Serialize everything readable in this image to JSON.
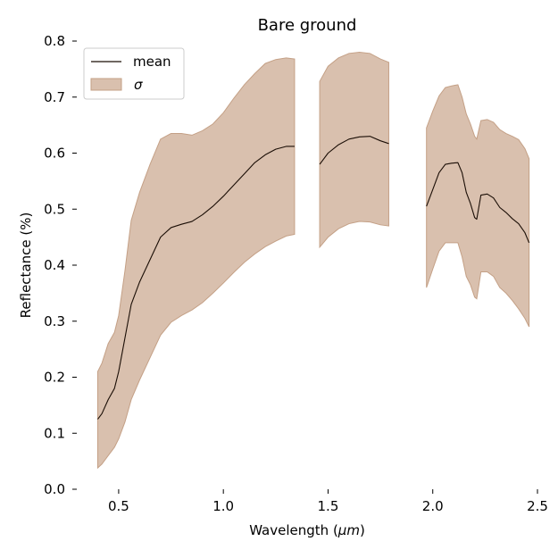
{
  "chart_data": {
    "type": "line",
    "title": "Bare ground",
    "xlabel": "Wavelength (μm)",
    "xlabel_parts": [
      "Wavelength (",
      "μm",
      ")"
    ],
    "ylabel": "Reflectance (%)",
    "xlim": [
      0.3,
      2.5
    ],
    "ylim": [
      0.0,
      0.8
    ],
    "xticks": [
      0.5,
      1.0,
      1.5,
      2.0,
      2.5
    ],
    "xtick_labels": [
      "0.5",
      "1.0",
      "1.5",
      "2.0",
      "2.5"
    ],
    "yticks": [
      0.0,
      0.1,
      0.2,
      0.3,
      0.4,
      0.5,
      0.6,
      0.7,
      0.8
    ],
    "ytick_labels": [
      "0.0",
      "0.1",
      "0.2",
      "0.3",
      "0.4",
      "0.5",
      "0.6",
      "0.7",
      "0.8"
    ],
    "grid": false,
    "legend_position": "top-left",
    "legend": [
      {
        "label": "mean",
        "kind": "line"
      },
      {
        "label": "σ",
        "kind": "patch"
      }
    ],
    "colors": {
      "mean_line": "#1a0d05",
      "band_fill": "#d9c0ae",
      "band_edge": "#c4a086",
      "text": "#000000",
      "axis": "#000000",
      "background": "#ffffff"
    },
    "segments": [
      {
        "x": [
          0.4,
          0.42,
          0.45,
          0.48,
          0.5,
          0.53,
          0.56,
          0.6,
          0.65,
          0.7,
          0.75,
          0.8,
          0.85,
          0.9,
          0.95,
          1.0,
          1.05,
          1.1,
          1.15,
          1.2,
          1.25,
          1.3,
          1.34
        ],
        "mean": [
          0.125,
          0.135,
          0.16,
          0.18,
          0.21,
          0.27,
          0.33,
          0.37,
          0.41,
          0.45,
          0.467,
          0.473,
          0.478,
          0.49,
          0.505,
          0.523,
          0.543,
          0.563,
          0.583,
          0.597,
          0.607,
          0.612,
          0.612
        ],
        "upper": [
          0.21,
          0.225,
          0.26,
          0.28,
          0.31,
          0.39,
          0.48,
          0.53,
          0.58,
          0.625,
          0.635,
          0.635,
          0.632,
          0.64,
          0.652,
          0.672,
          0.698,
          0.722,
          0.742,
          0.76,
          0.767,
          0.77,
          0.768
        ],
        "lower": [
          0.038,
          0.045,
          0.06,
          0.075,
          0.09,
          0.12,
          0.16,
          0.195,
          0.235,
          0.275,
          0.298,
          0.31,
          0.32,
          0.333,
          0.35,
          0.368,
          0.387,
          0.405,
          0.42,
          0.433,
          0.443,
          0.452,
          0.455
        ]
      },
      {
        "x": [
          1.46,
          1.5,
          1.55,
          1.6,
          1.65,
          1.7,
          1.75,
          1.79
        ],
        "mean": [
          0.58,
          0.6,
          0.615,
          0.625,
          0.629,
          0.63,
          0.622,
          0.617
        ],
        "upper": [
          0.728,
          0.755,
          0.77,
          0.778,
          0.78,
          0.778,
          0.768,
          0.762
        ],
        "lower": [
          0.432,
          0.45,
          0.465,
          0.474,
          0.478,
          0.477,
          0.472,
          0.47
        ]
      },
      {
        "x": [
          1.97,
          2.0,
          2.03,
          2.06,
          2.09,
          2.12,
          2.14,
          2.16,
          2.18,
          2.2,
          2.21,
          2.23,
          2.26,
          2.29,
          2.32,
          2.35,
          2.38,
          2.41,
          2.44,
          2.46
        ],
        "mean": [
          0.505,
          0.535,
          0.565,
          0.58,
          0.582,
          0.583,
          0.565,
          0.53,
          0.51,
          0.485,
          0.482,
          0.525,
          0.527,
          0.52,
          0.503,
          0.494,
          0.483,
          0.474,
          0.458,
          0.44
        ],
        "upper": [
          0.645,
          0.675,
          0.702,
          0.717,
          0.72,
          0.722,
          0.7,
          0.67,
          0.652,
          0.63,
          0.625,
          0.658,
          0.66,
          0.655,
          0.642,
          0.635,
          0.63,
          0.624,
          0.608,
          0.59
        ],
        "lower": [
          0.36,
          0.393,
          0.425,
          0.44,
          0.44,
          0.44,
          0.415,
          0.38,
          0.365,
          0.343,
          0.34,
          0.388,
          0.388,
          0.38,
          0.36,
          0.35,
          0.337,
          0.322,
          0.305,
          0.29
        ]
      }
    ]
  }
}
